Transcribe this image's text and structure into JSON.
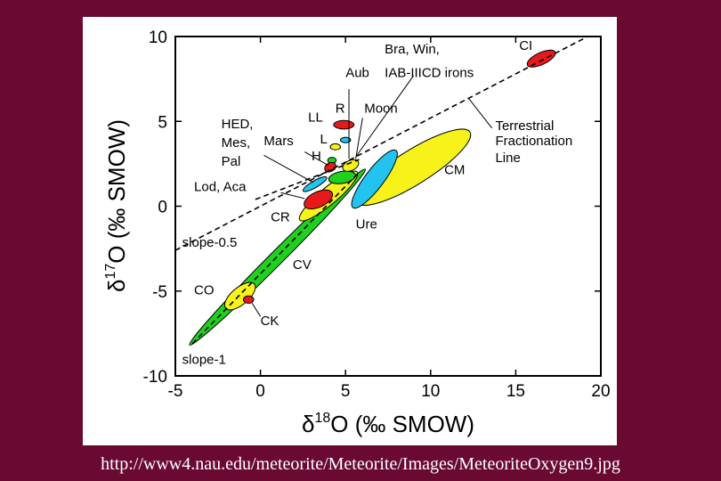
{
  "caption": "http://www4.nau.edu/meteorite/Meteorite/Images/MeteoriteOxygen9.jpg",
  "colors": {
    "background": "#6a0a32",
    "yellow": "#f7f21a",
    "green": "#1fd01f",
    "cyan": "#22c3ee",
    "red": "#e61a1a"
  },
  "chart_data": {
    "type": "scatter",
    "xlabel_delta": "δ",
    "xlabel_sup": "18",
    "xlabel_rest": "O (‰ SMOW)",
    "ylabel_delta": "δ",
    "ylabel_sup": "17",
    "ylabel_rest": "O (‰ SMOW)",
    "xlim": [
      -5,
      20
    ],
    "ylim": [
      -10,
      10
    ],
    "xticks": [
      "-5",
      "0",
      "5",
      "10",
      "15",
      "20"
    ],
    "yticks": [
      "-10",
      "-5",
      "0",
      "5",
      "10"
    ],
    "reference_lines": [
      {
        "name": "Terrestrial Fractionation Line",
        "points": [
          [
            -5,
            -2.6
          ],
          [
            20,
            10.4
          ]
        ]
      },
      {
        "name": "slope-0.5",
        "points": [
          [
            -0.3,
            0.4
          ],
          [
            5.8,
            2.75
          ]
        ]
      },
      {
        "name": "slope-1",
        "points": [
          [
            -4,
            -8.1
          ],
          [
            5.8,
            2.0
          ]
        ]
      }
    ],
    "regions": [
      {
        "name": "CV",
        "color": "green",
        "center": [
          1.0,
          -3.0
        ],
        "semi_axes": [
          7.3,
          0.4
        ],
        "angle_deg": 45
      },
      {
        "name": "CM",
        "color": "yellow",
        "center": [
          9.0,
          2.3
        ],
        "semi_axes": [
          3.9,
          1.0
        ],
        "angle_deg": 32
      },
      {
        "name": "CR",
        "color": "yellow",
        "center": [
          4.0,
          0.6
        ],
        "semi_axes": [
          2.2,
          0.5
        ],
        "angle_deg": 40
      },
      {
        "name": "Ure",
        "color": "cyan",
        "center": [
          6.7,
          1.6
        ],
        "semi_axes": [
          2.1,
          0.55
        ],
        "angle_deg": 53
      },
      {
        "name": "HED, Mes, Pal",
        "color": "cyan",
        "center": [
          3.2,
          1.3
        ],
        "semi_axes": [
          0.8,
          0.2
        ],
        "angle_deg": 30
      },
      {
        "name": "Lod, Aca",
        "color": "red",
        "center": [
          3.4,
          0.4
        ],
        "semi_axes": [
          0.9,
          0.45
        ],
        "angle_deg": 25
      },
      {
        "name": "green-center",
        "color": "green",
        "center": [
          4.8,
          1.7
        ],
        "semi_axes": [
          0.8,
          0.35
        ],
        "angle_deg": 10
      },
      {
        "name": "H",
        "color": "green",
        "center": [
          4.2,
          2.7
        ],
        "semi_axes": [
          0.25,
          0.18
        ],
        "angle_deg": 0
      },
      {
        "name": "Mars",
        "color": "red",
        "center": [
          4.1,
          2.3
        ],
        "semi_axes": [
          0.35,
          0.25
        ],
        "angle_deg": 30
      },
      {
        "name": "L",
        "color": "yellow",
        "center": [
          4.4,
          3.5
        ],
        "semi_axes": [
          0.3,
          0.18
        ],
        "angle_deg": 0
      },
      {
        "name": "LL",
        "color": "cyan",
        "center": [
          5.0,
          3.9
        ],
        "semi_axes": [
          0.3,
          0.16
        ],
        "angle_deg": 0
      },
      {
        "name": "R",
        "color": "red",
        "center": [
          4.9,
          4.8
        ],
        "semi_axes": [
          0.6,
          0.25
        ],
        "angle_deg": 0
      },
      {
        "name": "Aub / Moon",
        "color": "yellow",
        "center": [
          5.3,
          2.4
        ],
        "semi_axes": [
          0.5,
          0.3
        ],
        "angle_deg": 25
      },
      {
        "name": "CO",
        "color": "yellow",
        "center": [
          -1.2,
          -5.3
        ],
        "semi_axes": [
          1.1,
          0.5
        ],
        "angle_deg": 40
      },
      {
        "name": "CK",
        "color": "red",
        "center": [
          -0.7,
          -5.5
        ],
        "semi_axes": [
          0.3,
          0.22
        ],
        "angle_deg": 0
      },
      {
        "name": "CI",
        "color": "red",
        "center": [
          16.5,
          8.7
        ],
        "semi_axes": [
          0.9,
          0.35
        ],
        "angle_deg": 25
      }
    ],
    "labels": [
      {
        "text": "CI",
        "at": [
          15.2,
          9.2
        ]
      },
      {
        "text": "Bra, Win,",
        "at": [
          7.3,
          9.0
        ]
      },
      {
        "text": "IAB-IIICD irons",
        "at": [
          7.3,
          7.6
        ]
      },
      {
        "text": "Aub",
        "at": [
          5.0,
          7.6
        ]
      },
      {
        "text": "Moon",
        "at": [
          6.1,
          5.5
        ]
      },
      {
        "text": "Terrestrial",
        "at": [
          13.8,
          4.5
        ]
      },
      {
        "text": "Fractionation",
        "at": [
          13.8,
          3.6
        ]
      },
      {
        "text": "Line",
        "at": [
          13.8,
          2.6
        ]
      },
      {
        "text": "HED,",
        "at": [
          -2.3,
          4.6
        ]
      },
      {
        "text": "Mes,",
        "at": [
          -2.3,
          3.5
        ]
      },
      {
        "text": "Pal",
        "at": [
          -2.3,
          2.4
        ]
      },
      {
        "text": "LL",
        "at": [
          2.8,
          5.0
        ]
      },
      {
        "text": "R",
        "at": [
          4.4,
          5.5
        ]
      },
      {
        "text": "L",
        "at": [
          3.5,
          3.7
        ]
      },
      {
        "text": "Mars",
        "at": [
          0.2,
          3.6
        ]
      },
      {
        "text": "H",
        "at": [
          3.0,
          2.7
        ]
      },
      {
        "text": "Lod, Aca",
        "at": [
          -3.9,
          0.9
        ]
      },
      {
        "text": "CM",
        "at": [
          10.8,
          1.9
        ]
      },
      {
        "text": "CR",
        "at": [
          0.6,
          -0.9
        ]
      },
      {
        "text": "Ure",
        "at": [
          5.6,
          -1.3
        ]
      },
      {
        "text": "slope-0.5",
        "at": [
          -4.6,
          -2.4
        ]
      },
      {
        "text": "CV",
        "at": [
          1.9,
          -3.7
        ]
      },
      {
        "text": "CO",
        "at": [
          -3.9,
          -5.2
        ]
      },
      {
        "text": "CK",
        "at": [
          0.0,
          -7.0
        ]
      },
      {
        "text": "slope-1",
        "at": [
          -4.6,
          -9.3
        ]
      }
    ],
    "leaders": [
      {
        "from": [
          9.0,
          7.7
        ],
        "to": [
          5.6,
          2.9
        ]
      },
      {
        "from": [
          5.2,
          6.9
        ],
        "to": [
          5.2,
          2.8
        ]
      },
      {
        "from": [
          6.0,
          5.2
        ],
        "to": [
          5.6,
          2.8
        ]
      },
      {
        "from": [
          13.6,
          4.6
        ],
        "to": [
          12.2,
          6.4
        ]
      },
      {
        "from": [
          0.2,
          3.0
        ],
        "to": [
          3.1,
          1.4
        ]
      },
      {
        "from": [
          2.6,
          3.2
        ],
        "to": [
          4.0,
          2.4
        ]
      },
      {
        "from": [
          1.2,
          0.8
        ],
        "to": [
          2.6,
          0.45
        ]
      },
      {
        "from": [
          -0.5,
          -5.7
        ],
        "to": [
          0.0,
          -6.5
        ]
      }
    ]
  }
}
